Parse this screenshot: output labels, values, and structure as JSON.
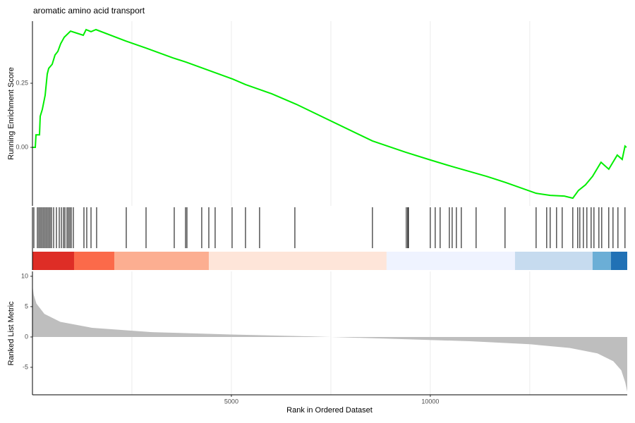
{
  "chart_data": [
    {
      "type": "line",
      "title": "aromatic amino acid transport",
      "y_label": "Running Enrichment Score",
      "color": "#00ee00",
      "x": [
        0,
        71,
        89,
        177,
        195,
        248,
        319,
        372,
        408,
        496,
        567,
        638,
        709,
        798,
        957,
        1277,
        1348,
        1472,
        1596,
        2340,
        2855,
        3528,
        3865,
        4255,
        5035,
        5355,
        6011,
        6631,
        8546,
        9380,
        10000,
        10532,
        11418,
        11897,
        12660,
        13014,
        13369,
        13582,
        13723,
        13901,
        14078,
        14291,
        14486,
        14699,
        14823,
        14894,
        14930
      ],
      "values": [
        0,
        0,
        0.049,
        0.049,
        0.121,
        0.148,
        0.203,
        0.286,
        0.308,
        0.324,
        0.36,
        0.374,
        0.404,
        0.429,
        0.453,
        0.437,
        0.459,
        0.451,
        0.459,
        0.415,
        0.387,
        0.349,
        0.332,
        0.31,
        0.266,
        0.245,
        0.209,
        0.168,
        0.025,
        -0.019,
        -0.049,
        -0.074,
        -0.113,
        -0.137,
        -0.179,
        -0.187,
        -0.19,
        -0.198,
        -0.168,
        -0.146,
        -0.113,
        -0.058,
        -0.085,
        -0.03,
        -0.047,
        0.005,
        0
      ],
      "xlim": [
        0,
        14950
      ],
      "ylim": [
        -0.228,
        0.492
      ],
      "yticks": [
        {
          "value": 0,
          "label": "0.00"
        },
        {
          "value": 0.25,
          "label": "0.25"
        }
      ],
      "xgrid": [
        2500,
        5000,
        7500,
        10000,
        12500
      ]
    },
    {
      "type": "rug",
      "color": "#000000",
      "xlim": [
        0,
        14950
      ],
      "x": [
        35,
        124,
        160,
        195,
        230,
        266,
        301,
        337,
        372,
        408,
        443,
        479,
        532,
        603,
        674,
        727,
        780,
        816,
        869,
        904,
        940,
        975,
        1028,
        1294,
        1365,
        1472,
        1613,
        2358,
        2855,
        3564,
        3848,
        3883,
        4255,
        4433,
        4592,
        5018,
        5355,
        5709,
        6596,
        8546,
        9397,
        9433,
        9450,
        10000,
        10124,
        10248,
        10479,
        10550,
        10656,
        10780,
        11152,
        11879,
        12660,
        12926,
        13014,
        13174,
        13316,
        13582,
        13706,
        13759,
        13848,
        13936,
        14043,
        14114,
        14238,
        14309,
        14486,
        14593,
        14717,
        14894
      ],
      "bands": [
        {
          "start": 0,
          "end": 1046,
          "color": "#de2d26"
        },
        {
          "start": 1046,
          "end": 2057,
          "color": "#fb6a4a"
        },
        {
          "start": 2057,
          "end": 4433,
          "color": "#fcae91"
        },
        {
          "start": 4433,
          "end": 8901,
          "color": "#fee5d9"
        },
        {
          "start": 8901,
          "end": 12128,
          "color": "#eff3ff"
        },
        {
          "start": 12128,
          "end": 14078,
          "color": "#c6dbef"
        },
        {
          "start": 14078,
          "end": 14539,
          "color": "#6baed6"
        },
        {
          "start": 14539,
          "end": 14950,
          "color": "#2171b5"
        }
      ]
    },
    {
      "type": "area",
      "y_label": "Ranked List Metric",
      "x_label": "Rank in Ordered Dataset",
      "color": "#bebebe",
      "x": [
        0,
        30,
        100,
        300,
        700,
        1500,
        3000,
        5000,
        7000,
        7500,
        9000,
        11000,
        12500,
        13500,
        14200,
        14600,
        14800,
        14900,
        14950
      ],
      "values": [
        8.5,
        7,
        5.5,
        3.8,
        2.5,
        1.5,
        0.8,
        0.4,
        0.1,
        0,
        -0.3,
        -0.7,
        -1.2,
        -1.8,
        -2.7,
        -4,
        -5.5,
        -7.5,
        -9
      ],
      "xlim": [
        0,
        14950
      ],
      "ylim": [
        -9.53,
        10.8
      ],
      "yticks": [
        -5,
        0,
        5,
        10
      ],
      "xticks": [
        5000,
        10000
      ],
      "xgrid": [
        2500,
        5000,
        7500,
        10000,
        12500
      ]
    }
  ]
}
